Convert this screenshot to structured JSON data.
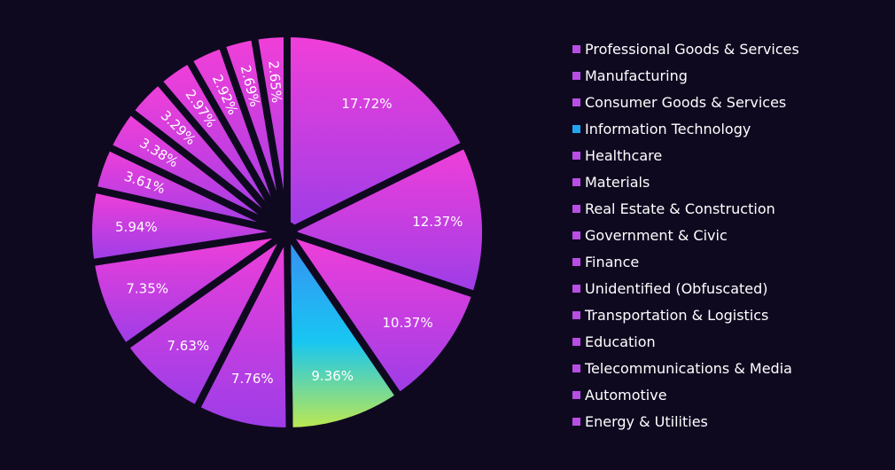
{
  "chart_data": {
    "type": "pie",
    "categories": [
      "Professional Goods & Services",
      "Manufacturing",
      "Consumer Goods & Services",
      "Information Technology",
      "Healthcare",
      "Materials",
      "Real Estate & Construction",
      "Government & Civic",
      "Finance",
      "Unidentified (Obfuscated)",
      "Transportation & Logistics",
      "Education",
      "Telecommunications & Media",
      "Automotive",
      "Energy & Utilities"
    ],
    "values": [
      17.72,
      12.37,
      10.37,
      9.36,
      7.76,
      7.63,
      7.35,
      5.94,
      3.61,
      3.38,
      3.29,
      2.97,
      2.92,
      2.69,
      2.65
    ],
    "labels": [
      "17.72%",
      "12.37%",
      "10.37%",
      "9.36%",
      "7.76%",
      "7.63%",
      "7.35%",
      "5.94%",
      "3.61%",
      "3.38%",
      "3.29%",
      "2.97%",
      "2.92%",
      "2.69%",
      "2.65%"
    ],
    "colors": [
      "#b94ee4",
      "#b94ee4",
      "#b94ee4",
      "#1fa8f0",
      "#b94ee4",
      "#b94ee4",
      "#b94ee4",
      "#b94ee4",
      "#b94ee4",
      "#b94ee4",
      "#b94ee4",
      "#b94ee4",
      "#b94ee4",
      "#b94ee4",
      "#b94ee4"
    ],
    "legend_position": "right",
    "title": "",
    "xlabel": "",
    "ylabel": ""
  },
  "style": {
    "background": "#0f0920",
    "text_color": "#ffffff",
    "slice_gradient_top": "#f23fd8",
    "slice_gradient_bottom": "#9b3de8",
    "highlight_gradient_top": "#3a8bf2",
    "highlight_gradient_middle": "#18c6f2",
    "highlight_gradient_bottom": "#c3e94b",
    "separator_color": "#0f0920"
  }
}
